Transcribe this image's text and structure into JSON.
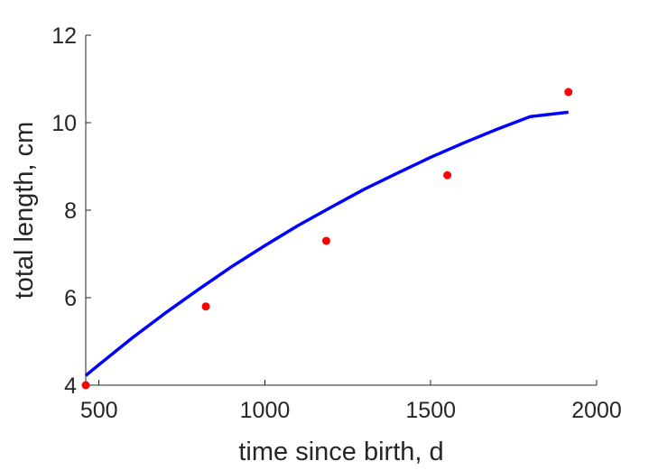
{
  "chart_data": {
    "type": "line",
    "title": "",
    "xlabel": "time since birth, d",
    "ylabel": "total length, cm",
    "xlim": [
      460,
      2000
    ],
    "ylim": [
      4,
      12
    ],
    "xticks": [
      500,
      1000,
      1500,
      2000
    ],
    "yticks": [
      4,
      6,
      8,
      10,
      12
    ],
    "grid": false,
    "series": [
      {
        "kind": "line",
        "color": "#0000ff",
        "x": [
          460,
          500,
          600,
          700,
          800,
          900,
          1000,
          1100,
          1200,
          1300,
          1400,
          1500,
          1600,
          1700,
          1800,
          1915
        ],
        "y": [
          4.22,
          4.47,
          5.08,
          5.65,
          6.19,
          6.71,
          7.19,
          7.65,
          8.07,
          8.48,
          8.85,
          9.21,
          9.54,
          9.85,
          10.14,
          10.24
        ]
      },
      {
        "kind": "scatter",
        "color": "#ff0000",
        "x": [
          460,
          822,
          1185,
          1550,
          1915
        ],
        "y": [
          4.0,
          5.8,
          7.3,
          8.8,
          10.7
        ]
      }
    ]
  }
}
